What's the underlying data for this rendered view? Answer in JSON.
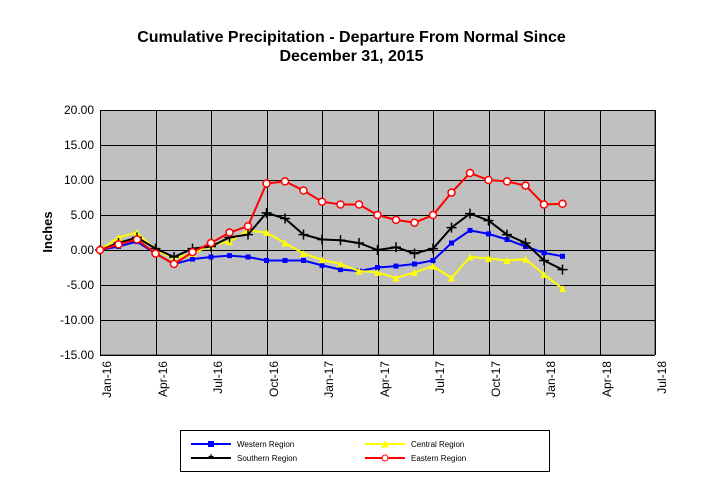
{
  "chart": {
    "type": "line",
    "title_line1": "Cumulative Precipitation - Departure From Normal Since",
    "title_line2": "December 31, 2015",
    "title_fontsize": 16,
    "ylabel": "Inches",
    "label_fontsize": 13,
    "background_color": "#ffffff",
    "plot_bg_color": "#c0c0c0",
    "grid_color": "#000000",
    "border_color": "#808080",
    "ylim": [
      -15,
      20
    ],
    "ytick_step": 5,
    "yticks": [
      "-15.00",
      "-10.00",
      "-5.00",
      "0.00",
      "5.00",
      "10.00",
      "15.00",
      "20.00"
    ],
    "x_labels": [
      "Jan-16",
      "Apr-16",
      "Jul-16",
      "Oct-16",
      "Jan-17",
      "Apr-17",
      "Jul-17",
      "Oct-17",
      "Jan-18",
      "Apr-18",
      "Jul-18"
    ],
    "x_label_rotation": -90,
    "x_months": 30,
    "tick_fontsize": 12,
    "line_width": 2,
    "series": [
      {
        "name": "Western Region",
        "color": "#0000ff",
        "marker": "square",
        "marker_size": 5,
        "values": [
          0.0,
          0.5,
          1.2,
          -0.5,
          -2.0,
          -1.3,
          -1.0,
          -0.8,
          -1.0,
          -1.5,
          -1.5,
          -1.5,
          -2.2,
          -2.8,
          -3.0,
          -2.5,
          -2.3,
          -2.0,
          -1.5,
          1.0,
          2.8,
          2.3,
          1.5,
          0.5,
          -0.4,
          -0.9
        ]
      },
      {
        "name": "Central Region",
        "color": "#ffff00",
        "marker": "triangle",
        "marker_size": 7,
        "values": [
          0.0,
          1.8,
          2.5,
          0.0,
          -1.2,
          -0.5,
          0.7,
          1.2,
          2.8,
          2.5,
          1.0,
          -0.5,
          -1.4,
          -2.0,
          -3.0,
          -3.2,
          -4.0,
          -3.2,
          -2.3,
          -4.0,
          -1.0,
          -1.2,
          -1.5,
          -1.3,
          -3.5,
          -5.5
        ]
      },
      {
        "name": "Southern Region",
        "color": "#000000",
        "marker": "cross",
        "marker_size": 10,
        "values": [
          0.0,
          1.0,
          1.8,
          0.2,
          -1.0,
          0.2,
          0.5,
          1.8,
          2.2,
          5.3,
          4.5,
          2.2,
          1.5,
          1.4,
          1.0,
          0.0,
          0.4,
          -0.5,
          0.2,
          3.2,
          5.2,
          4.2,
          2.2,
          1.0,
          -1.5,
          -2.8
        ]
      },
      {
        "name": "Eastern Region",
        "color": "#ff0000",
        "marker": "circle",
        "marker_size": 7,
        "values": [
          0.0,
          0.8,
          1.5,
          -0.5,
          -2.0,
          -0.3,
          1.0,
          2.5,
          3.4,
          9.5,
          9.8,
          8.5,
          6.9,
          6.5,
          6.5,
          5.0,
          4.3,
          3.9,
          5.0,
          8.2,
          11.0,
          10.0,
          9.8,
          9.2,
          6.5,
          6.6
        ]
      }
    ],
    "legend": {
      "fontsize": 8,
      "border_color": "#000000"
    }
  }
}
